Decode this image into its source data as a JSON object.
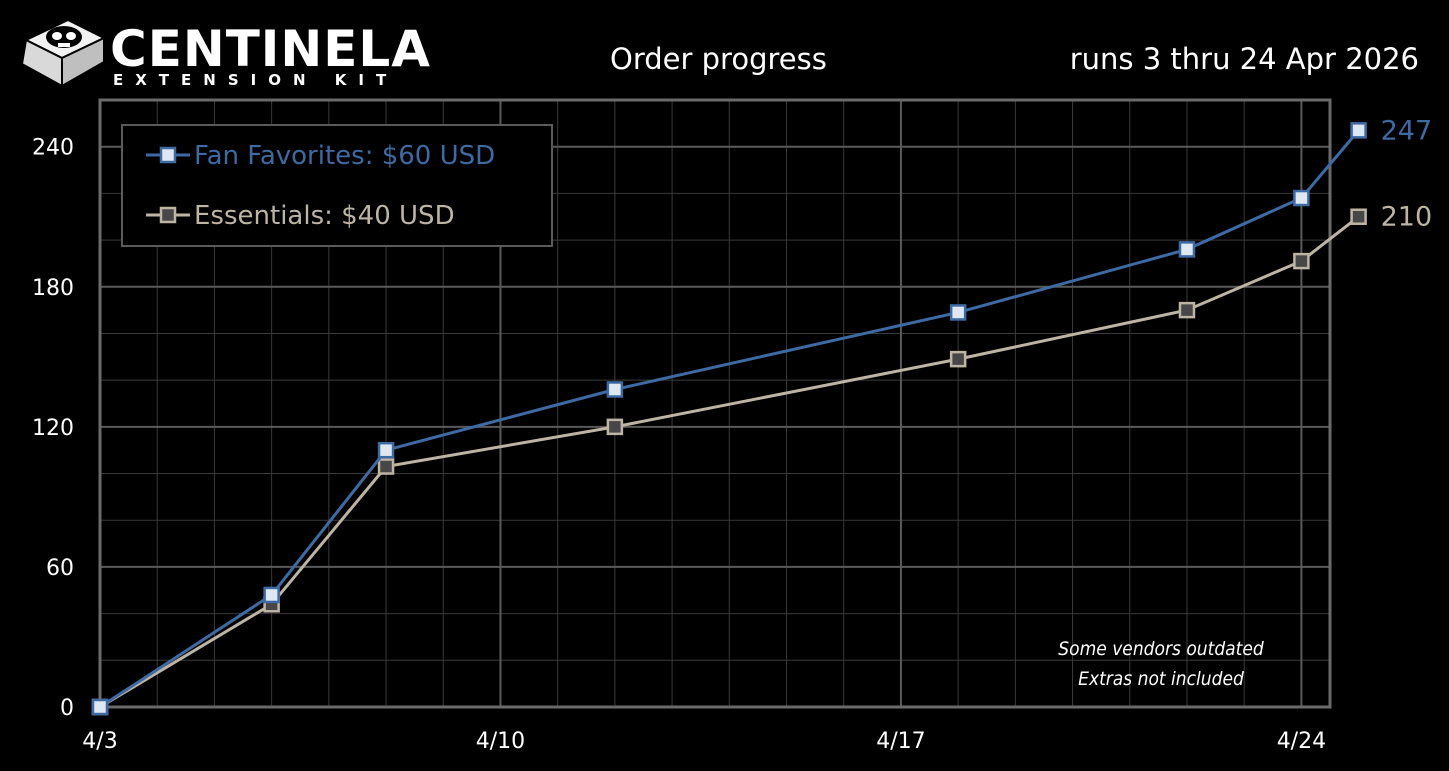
{
  "logo": {
    "brand": "CENTINELA",
    "tagline": "EXTENSION KIT"
  },
  "chart_data": {
    "type": "line",
    "title": "Order progress",
    "subtitle": "runs 3 thru 24 Apr 2026",
    "xlabel": "",
    "ylabel": "",
    "x_ticks": [
      "4/3",
      "4/10",
      "4/17",
      "4/24"
    ],
    "y_ticks": [
      0,
      60,
      120,
      180,
      240
    ],
    "ylim": [
      0,
      260
    ],
    "grid": true,
    "legend_position": "top-left",
    "x": [
      "2026-04-03",
      "2026-04-06",
      "2026-04-08",
      "2026-04-12",
      "2026-04-18",
      "2026-04-22",
      "2026-04-24",
      "2026-04-25"
    ],
    "series": [
      {
        "name": "Fan Favorites: $60 USD",
        "color": "#3e6aa3",
        "points": [
          {
            "x": "2026-04-03",
            "y": 0
          },
          {
            "x": "2026-04-06",
            "y": 48
          },
          {
            "x": "2026-04-08",
            "y": 110
          },
          {
            "x": "2026-04-12",
            "y": 136
          },
          {
            "x": "2026-04-18",
            "y": 169
          },
          {
            "x": "2026-04-22",
            "y": 196
          },
          {
            "x": "2026-04-24",
            "y": 218
          },
          {
            "x": "2026-04-25",
            "y": 247
          }
        ],
        "end_label": "247"
      },
      {
        "name": "Essentials: $40 USD",
        "color": "#bdb4a4",
        "points": [
          {
            "x": "2026-04-03",
            "y": 0
          },
          {
            "x": "2026-04-06",
            "y": 44
          },
          {
            "x": "2026-04-08",
            "y": 103
          },
          {
            "x": "2026-04-12",
            "y": 120
          },
          {
            "x": "2026-04-18",
            "y": 149
          },
          {
            "x": "2026-04-22",
            "y": 170
          },
          {
            "x": "2026-04-24",
            "y": 191
          },
          {
            "x": "2026-04-25",
            "y": 210
          }
        ],
        "end_label": "210"
      }
    ],
    "annotations": [
      "Some vendors outdated",
      "Extras not included"
    ]
  }
}
